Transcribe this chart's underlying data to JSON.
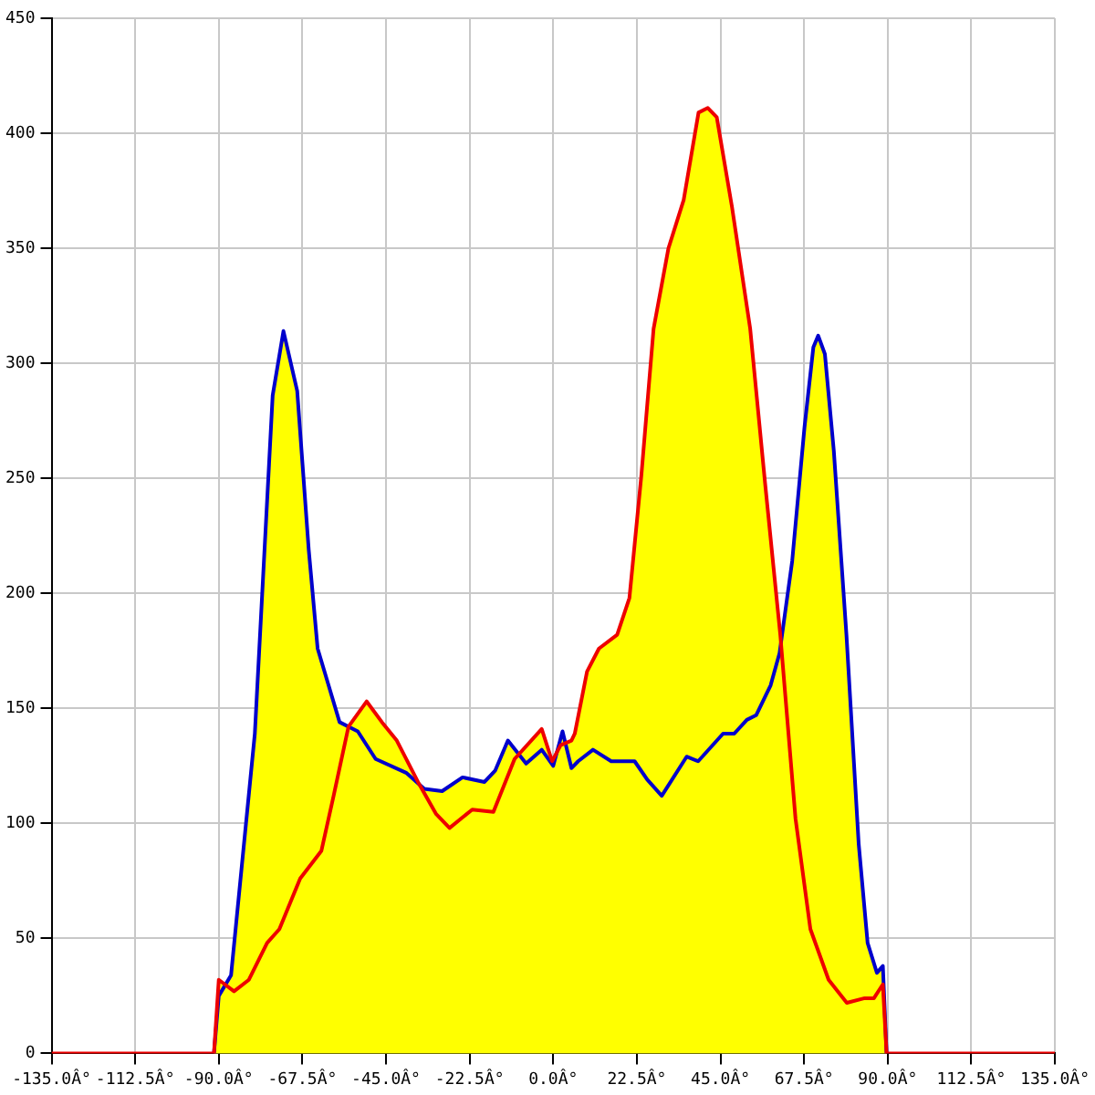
{
  "chart_data": {
    "type": "line",
    "xlim": [
      -135,
      135
    ],
    "xticks": [
      {
        "value": -135,
        "label": "-135.0Â°"
      },
      {
        "value": -112.5,
        "label": "-112.5Â°"
      },
      {
        "value": -90,
        "label": "-90.0Â°"
      },
      {
        "value": -67.5,
        "label": "-67.5Â°"
      },
      {
        "value": -45,
        "label": "-45.0Â°"
      },
      {
        "value": -22.5,
        "label": "-22.5Â°"
      },
      {
        "value": 0,
        "label": "0.0Â°"
      },
      {
        "value": 22.5,
        "label": "22.5Â°"
      },
      {
        "value": 45,
        "label": "45.0Â°"
      },
      {
        "value": 67.5,
        "label": "67.5Â°"
      },
      {
        "value": 90,
        "label": "90.0Â°"
      },
      {
        "value": 112.5,
        "label": "112.5Â°"
      },
      {
        "value": 135,
        "label": "135.0Â°"
      }
    ],
    "ylim": [
      0,
      450
    ],
    "yticks": [
      0,
      50,
      100,
      150,
      200,
      250,
      300,
      350,
      400,
      450
    ],
    "grid": true,
    "legend": false,
    "marker": "none",
    "line_style": "solid",
    "series": [
      {
        "color": "#0000cc",
        "x": [
          -91.3,
          -90,
          -86.7,
          -80.3,
          -75.5,
          -72.6,
          -68.9,
          -65.8,
          -63.4,
          -57.5,
          -52.6,
          -47.8,
          -39.6,
          -34.7,
          -29.9,
          -24.4,
          -18.5,
          -15.6,
          -12.2,
          -7.3,
          -3.1,
          0,
          2.5,
          4.9,
          6.7,
          10.7,
          15.6,
          21.9,
          25.3,
          29.2,
          35.9,
          39,
          45.7,
          48.7,
          52.1,
          54.6,
          58.5,
          60.9,
          64.3,
          67.6,
          70,
          71.3,
          73.1,
          75.5,
          78.9,
          82.2,
          84.6,
          87.1,
          88.7,
          89.7
        ],
        "values": [
          0,
          25,
          34,
          139,
          286,
          314,
          288,
          219,
          176,
          144,
          140,
          128,
          122,
          115,
          114,
          120,
          118,
          123,
          136,
          126,
          132,
          125,
          140,
          124,
          127,
          132,
          127,
          127,
          119,
          112,
          129,
          127,
          139,
          139,
          145,
          147,
          160,
          174,
          214,
          272,
          307,
          312,
          304,
          262,
          182,
          91,
          48,
          35,
          38,
          0
        ]
      },
      {
        "color": "#ee0000",
        "x": [
          -135,
          -91.3,
          -90,
          -85.9,
          -81.9,
          -77,
          -73.7,
          -68.1,
          -62.4,
          -59.1,
          -55.1,
          -50.2,
          -46.1,
          -42.1,
          -36.4,
          -31.5,
          -27.9,
          -21.8,
          -16.1,
          -10.4,
          -3.1,
          -0.3,
          2,
          4.9,
          5.8,
          9.1,
          12.3,
          17.2,
          20.5,
          23.7,
          27,
          31,
          35.1,
          39.1,
          41.6,
          44,
          48.1,
          53,
          57,
          61.1,
          65.2,
          69.2,
          74.1,
          79,
          83.8,
          86.3,
          88.7,
          89.7,
          135
        ],
        "values": [
          0,
          0,
          32,
          27,
          32,
          48,
          54,
          76,
          88,
          112,
          142,
          153,
          144,
          136,
          118,
          104,
          98,
          106,
          105,
          128,
          141,
          127,
          134,
          136,
          139,
          166,
          176,
          182,
          198,
          251,
          315,
          350,
          371,
          409,
          411,
          407,
          368,
          315,
          248,
          182,
          102,
          54,
          32,
          22,
          24,
          24,
          30,
          0,
          0
        ]
      }
    ]
  }
}
